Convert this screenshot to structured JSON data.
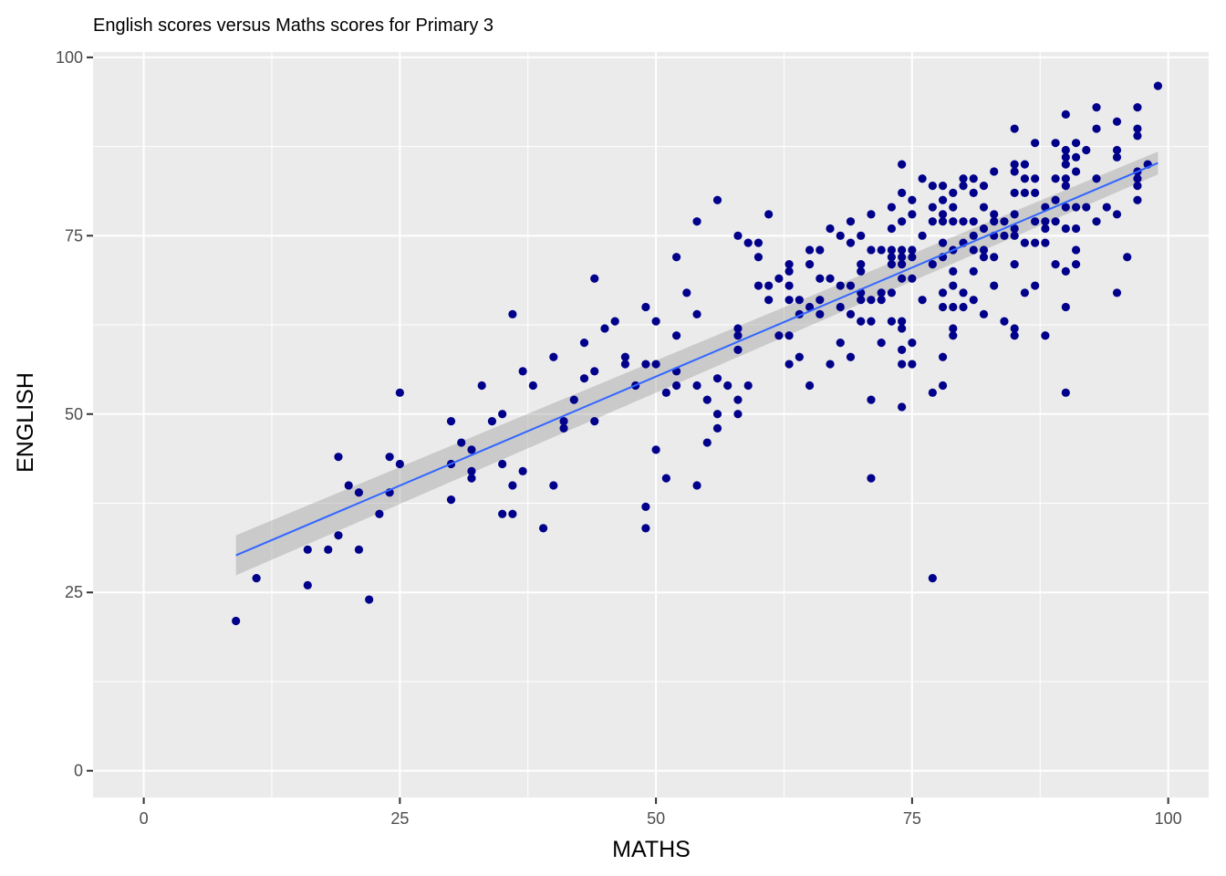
{
  "chart_data": {
    "type": "scatter",
    "title": "English scores versus Maths scores for Primary 3",
    "xlabel": "MATHS",
    "ylabel": "ENGLISH",
    "xlim": [
      -4.95,
      103.95
    ],
    "ylim": [
      -3.75,
      100.75
    ],
    "x_ticks": [
      0,
      25,
      50,
      75,
      100
    ],
    "x_tick_labels": [
      "0",
      "25",
      "50",
      "75",
      "100"
    ],
    "y_ticks": [
      0,
      25,
      50,
      75,
      100
    ],
    "y_tick_labels": [
      "0",
      "25",
      "50",
      "75",
      "100"
    ],
    "grid": true,
    "background": "#ebebeb",
    "grid_color": "#ffffff",
    "point_color": "#00008b",
    "line_color": "#3366ff",
    "band_color": "#999999",
    "points": [
      [
        9,
        21
      ],
      [
        11,
        27
      ],
      [
        16,
        31
      ],
      [
        16,
        26
      ],
      [
        18,
        31
      ],
      [
        19,
        44
      ],
      [
        19,
        33
      ],
      [
        20,
        40
      ],
      [
        21,
        39
      ],
      [
        21,
        31
      ],
      [
        22,
        24
      ],
      [
        23,
        36
      ],
      [
        24,
        44
      ],
      [
        24,
        39
      ],
      [
        25,
        53
      ],
      [
        25,
        43
      ],
      [
        30,
        49
      ],
      [
        30,
        43
      ],
      [
        30,
        38
      ],
      [
        31,
        46
      ],
      [
        32,
        45
      ],
      [
        32,
        42
      ],
      [
        32,
        41
      ],
      [
        33,
        54
      ],
      [
        34,
        49
      ],
      [
        35,
        50
      ],
      [
        35,
        43
      ],
      [
        35,
        36
      ],
      [
        36,
        64
      ],
      [
        36,
        40
      ],
      [
        36,
        36
      ],
      [
        37,
        56
      ],
      [
        37,
        42
      ],
      [
        38,
        54
      ],
      [
        39,
        34
      ],
      [
        40,
        58
      ],
      [
        40,
        40
      ],
      [
        41,
        49
      ],
      [
        41,
        48
      ],
      [
        42,
        52
      ],
      [
        43,
        60
      ],
      [
        43,
        55
      ],
      [
        44,
        69
      ],
      [
        44,
        56
      ],
      [
        44,
        49
      ],
      [
        45,
        62
      ],
      [
        46,
        63
      ],
      [
        47,
        58
      ],
      [
        47,
        57
      ],
      [
        48,
        54
      ],
      [
        49,
        65
      ],
      [
        49,
        57
      ],
      [
        49,
        37
      ],
      [
        49,
        34
      ],
      [
        50,
        63
      ],
      [
        50,
        57
      ],
      [
        50,
        45
      ],
      [
        51,
        53
      ],
      [
        51,
        41
      ],
      [
        52,
        72
      ],
      [
        52,
        61
      ],
      [
        52,
        56
      ],
      [
        52,
        54
      ],
      [
        53,
        67
      ],
      [
        54,
        77
      ],
      [
        54,
        64
      ],
      [
        54,
        54
      ],
      [
        54,
        40
      ],
      [
        55,
        52
      ],
      [
        55,
        46
      ],
      [
        56,
        80
      ],
      [
        56,
        55
      ],
      [
        56,
        50
      ],
      [
        56,
        48
      ],
      [
        57,
        54
      ],
      [
        58,
        75
      ],
      [
        58,
        62
      ],
      [
        58,
        61
      ],
      [
        58,
        59
      ],
      [
        58,
        52
      ],
      [
        58,
        50
      ],
      [
        59,
        74
      ],
      [
        59,
        54
      ],
      [
        60,
        74
      ],
      [
        60,
        72
      ],
      [
        60,
        68
      ],
      [
        61,
        78
      ],
      [
        61,
        68
      ],
      [
        61,
        66
      ],
      [
        62,
        69
      ],
      [
        62,
        61
      ],
      [
        63,
        71
      ],
      [
        63,
        70
      ],
      [
        63,
        68
      ],
      [
        63,
        66
      ],
      [
        63,
        61
      ],
      [
        63,
        57
      ],
      [
        64,
        66
      ],
      [
        64,
        64
      ],
      [
        64,
        58
      ],
      [
        65,
        73
      ],
      [
        65,
        71
      ],
      [
        65,
        65
      ],
      [
        65,
        54
      ],
      [
        66,
        73
      ],
      [
        66,
        69
      ],
      [
        66,
        66
      ],
      [
        66,
        64
      ],
      [
        67,
        76
      ],
      [
        67,
        69
      ],
      [
        67,
        57
      ],
      [
        68,
        75
      ],
      [
        68,
        68
      ],
      [
        68,
        65
      ],
      [
        68,
        60
      ],
      [
        69,
        77
      ],
      [
        69,
        74
      ],
      [
        69,
        68
      ],
      [
        69,
        64
      ],
      [
        69,
        58
      ],
      [
        70,
        75
      ],
      [
        70,
        71
      ],
      [
        70,
        70
      ],
      [
        70,
        67
      ],
      [
        70,
        66
      ],
      [
        70,
        63
      ],
      [
        71,
        78
      ],
      [
        71,
        73
      ],
      [
        71,
        66
      ],
      [
        71,
        63
      ],
      [
        71,
        52
      ],
      [
        71,
        41
      ],
      [
        72,
        73
      ],
      [
        72,
        67
      ],
      [
        72,
        66
      ],
      [
        72,
        60
      ],
      [
        73,
        79
      ],
      [
        73,
        76
      ],
      [
        73,
        73
      ],
      [
        73,
        72
      ],
      [
        73,
        71
      ],
      [
        73,
        67
      ],
      [
        73,
        63
      ],
      [
        74,
        85
      ],
      [
        74,
        81
      ],
      [
        74,
        77
      ],
      [
        74,
        73
      ],
      [
        74,
        72
      ],
      [
        74,
        71
      ],
      [
        74,
        69
      ],
      [
        74,
        63
      ],
      [
        74,
        62
      ],
      [
        74,
        59
      ],
      [
        74,
        57
      ],
      [
        74,
        51
      ],
      [
        75,
        80
      ],
      [
        75,
        78
      ],
      [
        75,
        73
      ],
      [
        75,
        72
      ],
      [
        75,
        69
      ],
      [
        75,
        60
      ],
      [
        75,
        57
      ],
      [
        76,
        83
      ],
      [
        76,
        75
      ],
      [
        76,
        66
      ],
      [
        77,
        82
      ],
      [
        77,
        79
      ],
      [
        77,
        77
      ],
      [
        77,
        71
      ],
      [
        77,
        53
      ],
      [
        77,
        27
      ],
      [
        78,
        82
      ],
      [
        78,
        80
      ],
      [
        78,
        78
      ],
      [
        78,
        77
      ],
      [
        78,
        74
      ],
      [
        78,
        72
      ],
      [
        78,
        67
      ],
      [
        78,
        65
      ],
      [
        78,
        58
      ],
      [
        78,
        54
      ],
      [
        79,
        81
      ],
      [
        79,
        79
      ],
      [
        79,
        77
      ],
      [
        79,
        73
      ],
      [
        79,
        70
      ],
      [
        79,
        68
      ],
      [
        79,
        65
      ],
      [
        79,
        62
      ],
      [
        79,
        61
      ],
      [
        80,
        83
      ],
      [
        80,
        82
      ],
      [
        80,
        77
      ],
      [
        80,
        74
      ],
      [
        80,
        67
      ],
      [
        80,
        65
      ],
      [
        81,
        83
      ],
      [
        81,
        81
      ],
      [
        81,
        77
      ],
      [
        81,
        75
      ],
      [
        81,
        73
      ],
      [
        81,
        70
      ],
      [
        81,
        66
      ],
      [
        82,
        82
      ],
      [
        82,
        79
      ],
      [
        82,
        76
      ],
      [
        82,
        73
      ],
      [
        82,
        72
      ],
      [
        82,
        64
      ],
      [
        83,
        84
      ],
      [
        83,
        78
      ],
      [
        83,
        77
      ],
      [
        83,
        75
      ],
      [
        83,
        72
      ],
      [
        83,
        68
      ],
      [
        84,
        77
      ],
      [
        84,
        75
      ],
      [
        84,
        63
      ],
      [
        85,
        90
      ],
      [
        85,
        85
      ],
      [
        85,
        84
      ],
      [
        85,
        81
      ],
      [
        85,
        78
      ],
      [
        85,
        76
      ],
      [
        85,
        75
      ],
      [
        85,
        71
      ],
      [
        85,
        62
      ],
      [
        85,
        61
      ],
      [
        86,
        85
      ],
      [
        86,
        83
      ],
      [
        86,
        81
      ],
      [
        86,
        74
      ],
      [
        86,
        67
      ],
      [
        87,
        88
      ],
      [
        87,
        83
      ],
      [
        87,
        81
      ],
      [
        87,
        77
      ],
      [
        87,
        74
      ],
      [
        87,
        68
      ],
      [
        88,
        79
      ],
      [
        88,
        77
      ],
      [
        88,
        76
      ],
      [
        88,
        74
      ],
      [
        88,
        61
      ],
      [
        89,
        88
      ],
      [
        89,
        83
      ],
      [
        89,
        80
      ],
      [
        89,
        77
      ],
      [
        89,
        71
      ],
      [
        90,
        92
      ],
      [
        90,
        87
      ],
      [
        90,
        86
      ],
      [
        90,
        85
      ],
      [
        90,
        83
      ],
      [
        90,
        82
      ],
      [
        90,
        79
      ],
      [
        90,
        76
      ],
      [
        90,
        70
      ],
      [
        90,
        65
      ],
      [
        90,
        53
      ],
      [
        91,
        88
      ],
      [
        91,
        86
      ],
      [
        91,
        84
      ],
      [
        91,
        79
      ],
      [
        91,
        76
      ],
      [
        91,
        73
      ],
      [
        91,
        71
      ],
      [
        92,
        87
      ],
      [
        92,
        79
      ],
      [
        93,
        93
      ],
      [
        93,
        90
      ],
      [
        93,
        83
      ],
      [
        93,
        77
      ],
      [
        94,
        79
      ],
      [
        95,
        91
      ],
      [
        95,
        87
      ],
      [
        95,
        86
      ],
      [
        95,
        78
      ],
      [
        95,
        67
      ],
      [
        96,
        72
      ],
      [
        97,
        93
      ],
      [
        97,
        90
      ],
      [
        97,
        89
      ],
      [
        97,
        84
      ],
      [
        97,
        83
      ],
      [
        97,
        82
      ],
      [
        97,
        80
      ],
      [
        98,
        85
      ],
      [
        99,
        96
      ]
    ],
    "fit": {
      "x": [
        9,
        99
      ],
      "y": [
        30.2,
        85.2
      ],
      "band_lower": [
        27.4,
        83.6
      ],
      "band_upper": [
        33.0,
        86.8
      ]
    }
  }
}
